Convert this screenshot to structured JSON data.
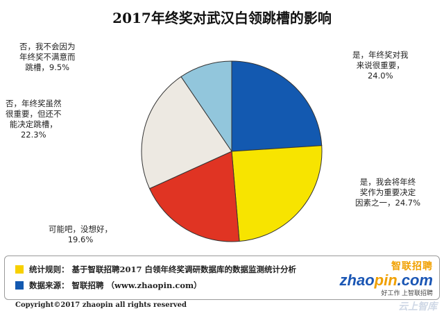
{
  "chart_data": {
    "type": "pie",
    "title": "2017年终奖对武汉白领跳槽的影响",
    "slices": [
      {
        "label_lines": [
          "是，年终奖对我",
          "来说很重要，",
          "24.0%"
        ],
        "value": 24.0,
        "color": "#1359b0"
      },
      {
        "label_lines": [
          "是，我会将年终",
          "奖作为重要决定",
          "因素之一，24.7%"
        ],
        "value": 24.7,
        "color": "#f7e400"
      },
      {
        "label_lines": [
          "可能吧，没想好，",
          "19.6%"
        ],
        "value": 19.6,
        "color": "#e03423"
      },
      {
        "label_lines": [
          "否，年终奖虽然",
          "很重要，但还不",
          "能决定跳槽，",
          "22.3%"
        ],
        "value": 22.3,
        "color": "#ede9e2"
      },
      {
        "label_lines": [
          "否，我不会因为",
          "年终奖不满意而",
          "跳槽，9.5%"
        ],
        "value": 9.5,
        "color": "#92c6dc"
      }
    ]
  },
  "footer": {
    "rule_key": "统计规则：",
    "rule_text": "基于智联招聘2017 白领年终奖调研数据库的数据监测统计分析",
    "rule_color": "#f7d000",
    "source_key": "数据来源：",
    "source_text": "智联招聘 （www.zhaopin.com）",
    "source_color": "#1359b0"
  },
  "brand": {
    "name_cn": "智联招聘",
    "name_en_a": "zhao",
    "name_en_b": "pin",
    "name_en_c": ".com",
    "slogan": "好工作 上智联招聘"
  },
  "copyright": "Copyright©2017 zhaopin all rights reserved",
  "watermark": "云上智库"
}
